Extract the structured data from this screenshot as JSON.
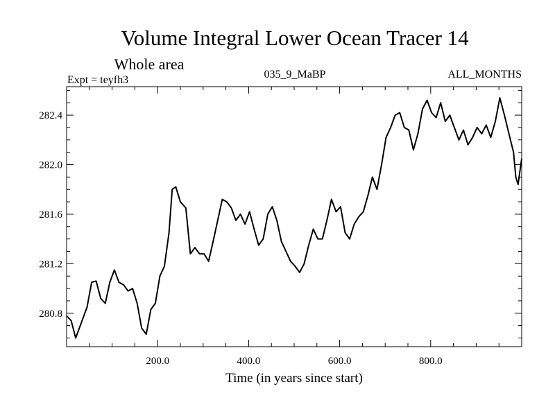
{
  "chart_data": {
    "type": "line",
    "title": "Volume Integral Lower Ocean Tracer 14",
    "subtitle": "Whole area",
    "expt_label": "Expt = teyfh3",
    "run_label": "035_9_MaBP",
    "months_label": "ALL_MONTHS",
    "xlabel": "Time (in years since start)",
    "ylabel": "",
    "xlim": [
      0,
      1000
    ],
    "ylim": [
      280.53,
      282.63
    ],
    "xticks": [
      {
        "value": 200,
        "label": "200.0"
      },
      {
        "value": 400,
        "label": "400.0"
      },
      {
        "value": 600,
        "label": "600.0"
      },
      {
        "value": 800,
        "label": "800.0"
      }
    ],
    "yticks": [
      {
        "value": 280.8,
        "label": "280.8"
      },
      {
        "value": 281.2,
        "label": "281.2"
      },
      {
        "value": 281.6,
        "label": "281.6"
      },
      {
        "value": 282.0,
        "label": "282.0"
      },
      {
        "value": 282.4,
        "label": "282.4"
      }
    ],
    "series": [
      {
        "name": "Lower Ocean Tracer 14",
        "x": [
          0,
          10,
          20,
          30,
          45,
          55,
          65,
          75,
          85,
          95,
          105,
          115,
          125,
          135,
          145,
          155,
          165,
          175,
          185,
          195,
          205,
          215,
          225,
          232,
          240,
          250,
          262,
          272,
          282,
          292,
          302,
          312,
          322,
          332,
          342,
          352,
          362,
          372,
          382,
          392,
          402,
          412,
          422,
          432,
          442,
          452,
          462,
          472,
          482,
          492,
          502,
          512,
          522,
          532,
          542,
          552,
          562,
          572,
          582,
          592,
          602,
          612,
          622,
          632,
          642,
          652,
          662,
          672,
          682,
          692,
          702,
          712,
          722,
          732,
          742,
          752,
          762,
          772,
          782,
          792,
          802,
          812,
          822,
          832,
          842,
          852,
          862,
          872,
          882,
          892,
          902,
          912,
          922,
          932,
          942,
          952,
          962,
          972,
          982,
          987,
          992,
          1000
        ],
        "y": [
          280.78,
          280.74,
          280.6,
          280.7,
          280.85,
          281.05,
          281.06,
          280.92,
          280.88,
          281.05,
          281.15,
          281.05,
          281.03,
          280.98,
          281.0,
          280.88,
          280.68,
          280.63,
          280.83,
          280.88,
          281.1,
          281.18,
          281.45,
          281.8,
          281.82,
          281.7,
          281.65,
          281.28,
          281.33,
          281.28,
          281.28,
          281.22,
          281.38,
          281.55,
          281.72,
          281.7,
          281.65,
          281.55,
          281.6,
          281.52,
          281.62,
          281.48,
          281.35,
          281.4,
          281.6,
          281.66,
          281.55,
          281.38,
          281.3,
          281.22,
          281.18,
          281.13,
          281.2,
          281.35,
          281.48,
          281.4,
          281.4,
          281.55,
          281.72,
          281.62,
          281.66,
          281.45,
          281.4,
          281.52,
          281.58,
          281.62,
          281.75,
          281.9,
          281.8,
          282.0,
          282.22,
          282.3,
          282.4,
          282.42,
          282.3,
          282.28,
          282.12,
          282.25,
          282.45,
          282.52,
          282.42,
          282.38,
          282.5,
          282.35,
          282.4,
          282.3,
          282.2,
          282.28,
          282.16,
          282.22,
          282.3,
          282.25,
          282.32,
          282.22,
          282.35,
          282.54,
          282.4,
          282.25,
          282.1,
          281.9,
          281.84,
          282.05
        ]
      }
    ]
  }
}
